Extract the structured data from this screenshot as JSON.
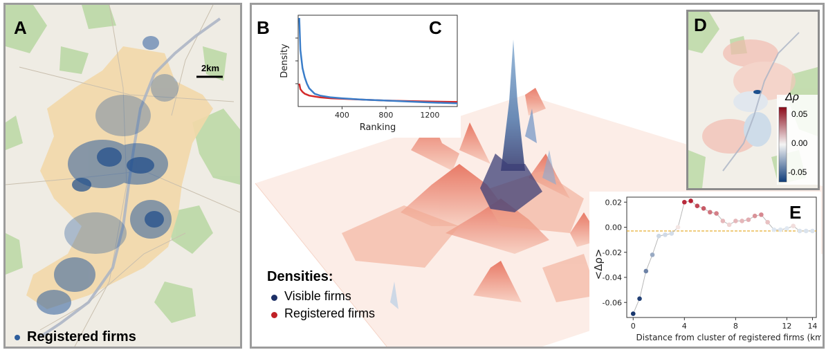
{
  "panel_labels": {
    "a": "A",
    "b": "B",
    "c": "C",
    "d": "D",
    "e": "E"
  },
  "map_a": {
    "scale_label": "2km",
    "legend_label": "Registered firms",
    "legend_color": "#2e5e9c"
  },
  "center_legend": {
    "title": "Densities:",
    "items": [
      {
        "label": "Visible firms",
        "color": "#1c2f66"
      },
      {
        "label": "Registered firms",
        "color": "#c02026"
      }
    ]
  },
  "colorbar": {
    "label": "Δρ",
    "ticks": [
      "0.05",
      "0.00",
      "-0.05"
    ],
    "colors": {
      "top": "#8b0a1a",
      "mid": "#f4f4f4",
      "bottom": "#0f3d7a"
    }
  },
  "chart_data": [
    {
      "id": "C",
      "type": "line",
      "xlabel": "Ranking",
      "ylabel": "Density",
      "xticks": [
        400,
        800,
        1200
      ],
      "xlim": [
        0,
        1450
      ],
      "ylim": [
        0,
        1
      ],
      "yticks_shown": false,
      "series": [
        {
          "color": "#3a7dc9",
          "x": [
            10,
            20,
            40,
            60,
            80,
            100,
            150,
            200,
            300,
            400,
            600,
            800,
            1000,
            1200,
            1450
          ],
          "y": [
            0.97,
            0.62,
            0.42,
            0.32,
            0.25,
            0.2,
            0.14,
            0.12,
            0.1,
            0.09,
            0.075,
            0.065,
            0.055,
            0.045,
            0.035
          ]
        },
        {
          "color": "#d42a2a",
          "x": [
            10,
            20,
            40,
            60,
            80,
            100,
            150,
            200,
            300,
            400,
            600,
            800,
            1000,
            1200,
            1450
          ],
          "y": [
            0.25,
            0.19,
            0.16,
            0.14,
            0.13,
            0.12,
            0.11,
            0.1,
            0.09,
            0.085,
            0.075,
            0.065,
            0.06,
            0.055,
            0.05
          ]
        }
      ]
    },
    {
      "id": "E",
      "type": "scatter",
      "xlabel": "Distance from cluster of registered firms (km)",
      "ylabel": "<Δρ>",
      "xlim": [
        -0.5,
        14.3
      ],
      "ylim": [
        -0.072,
        0.024
      ],
      "xticks": [
        "0",
        "4",
        "8",
        "12",
        "14"
      ],
      "xtick_values": [
        0,
        4,
        8,
        12,
        14
      ],
      "yticks": [
        "0.02",
        "0.00",
        "-0.02",
        "-0.04",
        "-0.06"
      ],
      "ytick_values": [
        0.02,
        0.0,
        -0.02,
        -0.04,
        -0.06
      ],
      "reference_y": -0.003,
      "reference_color": "#e3a41a",
      "line_color": "#b8b8b8",
      "points": [
        {
          "x": 0.0,
          "y": -0.069
        },
        {
          "x": 0.5,
          "y": -0.057
        },
        {
          "x": 1.0,
          "y": -0.035
        },
        {
          "x": 1.5,
          "y": -0.022
        },
        {
          "x": 2.0,
          "y": -0.007
        },
        {
          "x": 2.5,
          "y": -0.006
        },
        {
          "x": 3.0,
          "y": -0.005
        },
        {
          "x": 3.5,
          "y": 0.0
        },
        {
          "x": 4.0,
          "y": 0.02
        },
        {
          "x": 4.5,
          "y": 0.021
        },
        {
          "x": 5.0,
          "y": 0.017
        },
        {
          "x": 5.5,
          "y": 0.015
        },
        {
          "x": 6.0,
          "y": 0.012
        },
        {
          "x": 6.5,
          "y": 0.011
        },
        {
          "x": 7.0,
          "y": 0.005
        },
        {
          "x": 7.5,
          "y": 0.002
        },
        {
          "x": 8.0,
          "y": 0.005
        },
        {
          "x": 8.5,
          "y": 0.005
        },
        {
          "x": 9.0,
          "y": 0.006
        },
        {
          "x": 9.5,
          "y": 0.009
        },
        {
          "x": 10.0,
          "y": 0.01
        },
        {
          "x": 10.5,
          "y": 0.004
        },
        {
          "x": 11.0,
          "y": -0.002
        },
        {
          "x": 11.5,
          "y": -0.002
        },
        {
          "x": 12.0,
          "y": -0.001
        },
        {
          "x": 12.5,
          "y": 0.001
        },
        {
          "x": 13.0,
          "y": -0.003
        },
        {
          "x": 13.5,
          "y": -0.003
        },
        {
          "x": 14.0,
          "y": -0.003
        }
      ]
    }
  ]
}
